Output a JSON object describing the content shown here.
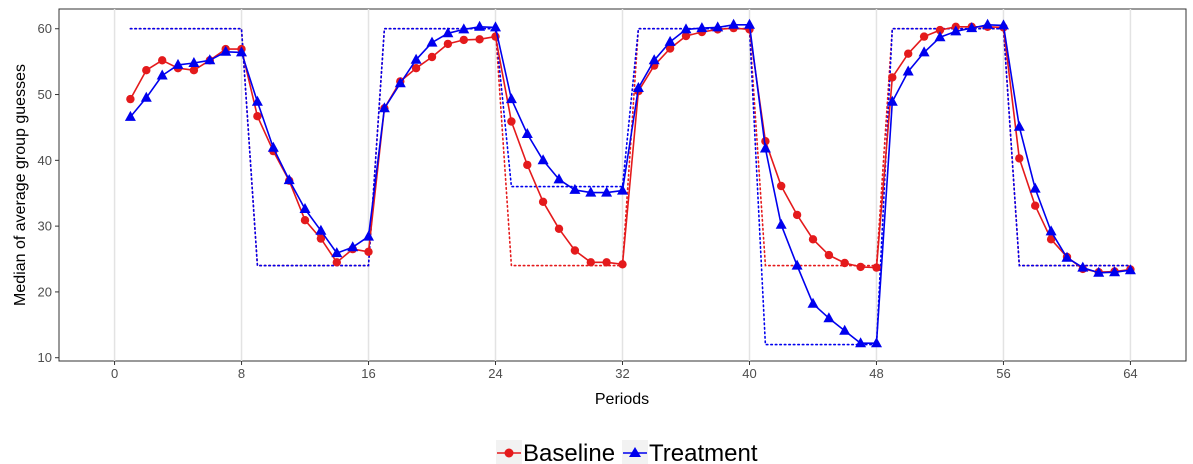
{
  "chart_data": {
    "type": "line",
    "xlabel": "Periods",
    "ylabel": "Median of average group guesses",
    "xlim": [
      -3.5,
      67.5
    ],
    "ylim": [
      9.5,
      63
    ],
    "x_ticks": [
      "0",
      "8",
      "16",
      "24",
      "32",
      "40",
      "48",
      "56",
      "64"
    ],
    "y_ticks": [
      "10",
      "20",
      "30",
      "40",
      "50",
      "60"
    ],
    "grid": "vertical lines at 0, 8, 16, 24, 32, 40, 48, 56, 64",
    "legend_position": "bottom",
    "x": [
      1,
      2,
      3,
      4,
      5,
      6,
      7,
      8,
      9,
      10,
      11,
      12,
      13,
      14,
      15,
      16,
      17,
      18,
      19,
      20,
      21,
      22,
      23,
      24,
      25,
      26,
      27,
      28,
      29,
      30,
      31,
      32,
      33,
      34,
      35,
      36,
      37,
      38,
      39,
      40,
      41,
      42,
      43,
      44,
      45,
      46,
      47,
      48,
      49,
      50,
      51,
      52,
      53,
      54,
      55,
      56,
      57,
      58,
      59,
      60,
      61,
      62,
      63,
      64
    ],
    "series": [
      {
        "name": "Baseline",
        "color": "#e41a1c",
        "marker": "circle",
        "values": [
          49.3,
          53.7,
          55.2,
          54.0,
          53.7,
          55.2,
          56.9,
          56.9,
          46.7,
          41.4,
          36.9,
          30.9,
          28.1,
          24.5,
          26.5,
          26.1,
          47.9,
          52.0,
          54.0,
          55.7,
          57.7,
          58.3,
          58.4,
          58.8,
          45.9,
          39.3,
          33.7,
          29.6,
          26.3,
          24.5,
          24.5,
          24.2,
          50.5,
          54.4,
          57.0,
          58.9,
          59.5,
          59.9,
          60.1,
          59.9,
          42.9,
          36.1,
          31.7,
          28.0,
          25.6,
          24.4,
          23.8,
          23.7,
          52.6,
          56.2,
          58.8,
          59.8,
          60.3,
          60.3,
          60.3,
          60.2,
          40.3,
          33.1,
          28.0,
          25.3,
          23.5,
          23.0,
          23.1,
          23.4
        ]
      },
      {
        "name": "Treatment",
        "color": "#0000ee",
        "marker": "triangle",
        "values": [
          46.6,
          49.5,
          52.9,
          54.5,
          54.8,
          55.2,
          56.5,
          56.4,
          48.9,
          41.9,
          37.0,
          32.6,
          29.3,
          25.9,
          26.8,
          28.4,
          47.9,
          51.7,
          55.3,
          57.9,
          59.3,
          59.9,
          60.3,
          60.2,
          49.3,
          44.0,
          40.0,
          37.1,
          35.5,
          35.1,
          35.1,
          35.4,
          51.0,
          55.2,
          58.0,
          59.9,
          60.1,
          60.2,
          60.6,
          60.6,
          41.8,
          30.2,
          24.0,
          18.2,
          16.0,
          14.1,
          12.2,
          12.2,
          48.9,
          53.5,
          56.4,
          58.7,
          59.6,
          60.1,
          60.6,
          60.5,
          45.1,
          35.7,
          29.2,
          25.2,
          23.7,
          22.9,
          23.0,
          23.3
        ]
      },
      {
        "name": "",
        "color": "#e41a1c",
        "style": "dotted",
        "values": [
          60,
          60,
          60,
          60,
          60,
          60,
          60,
          60,
          24,
          24,
          24,
          24,
          24,
          24,
          24,
          24,
          60,
          60,
          60,
          60,
          60,
          60,
          60,
          60,
          24,
          24,
          24,
          24,
          24,
          24,
          24,
          24,
          60,
          60,
          60,
          60,
          60,
          60,
          60,
          60,
          24,
          24,
          24,
          24,
          24,
          24,
          24,
          24,
          60,
          60,
          60,
          60,
          60,
          60,
          60,
          60,
          24,
          24,
          24,
          24,
          24,
          24,
          24,
          24
        ]
      },
      {
        "name": "",
        "color": "#0000ee",
        "style": "dotted",
        "values": [
          60,
          60,
          60,
          60,
          60,
          60,
          60,
          60,
          24,
          24,
          24,
          24,
          24,
          24,
          24,
          24,
          60,
          60,
          60,
          60,
          60,
          60,
          60,
          60,
          36,
          36,
          36,
          36,
          36,
          36,
          36,
          36,
          60,
          60,
          60,
          60,
          60,
          60,
          60,
          60,
          12,
          12,
          12,
          12,
          12,
          12,
          12,
          12,
          60,
          60,
          60,
          60,
          60,
          60,
          60,
          60,
          24,
          24,
          24,
          24,
          24,
          24,
          24,
          24
        ]
      }
    ]
  }
}
